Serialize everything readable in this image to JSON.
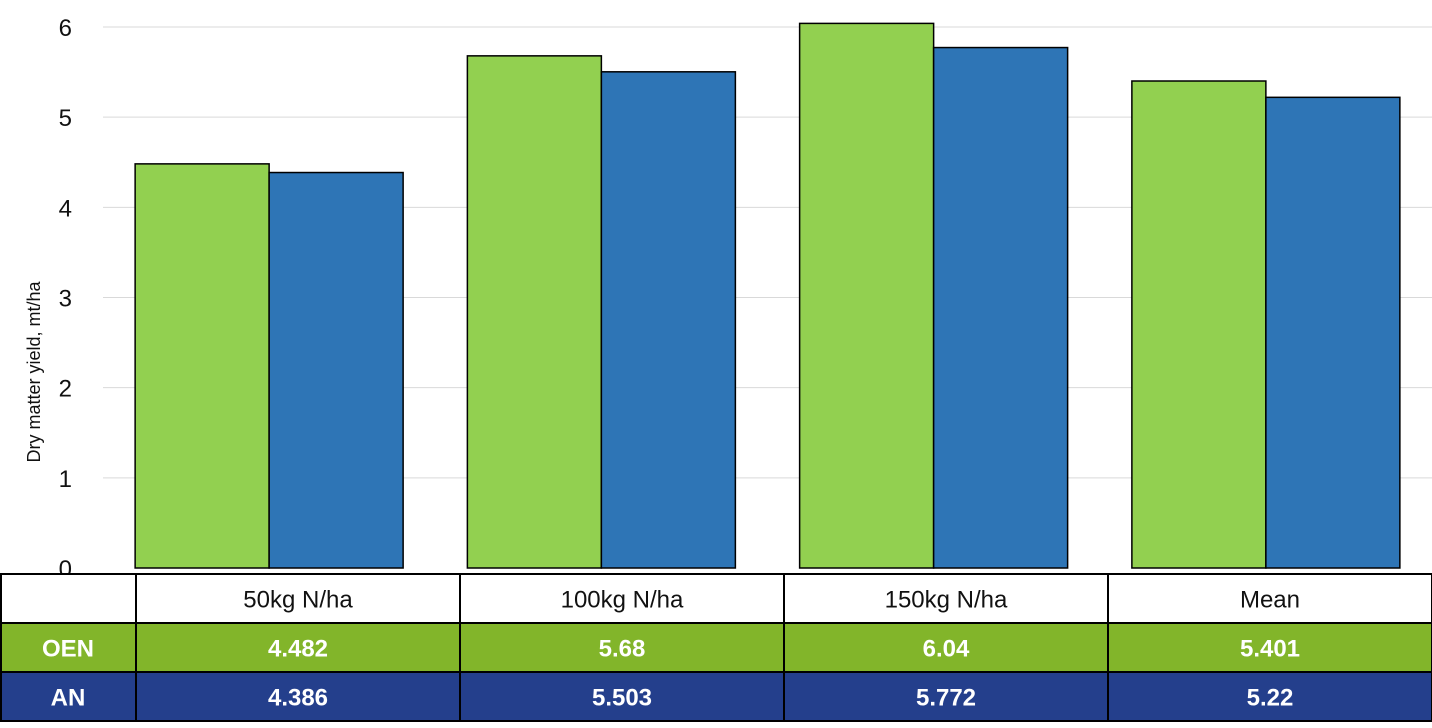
{
  "chart_data": {
    "type": "bar",
    "categories": [
      "50kg N/ha",
      "100kg N/ha",
      "150kg N/ha",
      "Mean"
    ],
    "series": [
      {
        "name": "OEN",
        "values": [
          4.482,
          5.68,
          6.04,
          5.401
        ],
        "color": "#92d050",
        "row_color": "#82b52a"
      },
      {
        "name": "AN",
        "values": [
          4.386,
          5.503,
          5.772,
          5.22
        ],
        "color": "#2e75b6",
        "row_color": "#243f8c"
      }
    ],
    "value_labels": [
      [
        "4.482",
        "5.68",
        "6.04",
        "5.401"
      ],
      [
        "4.386",
        "5.503",
        "5.772",
        "5.22"
      ]
    ],
    "ylabel": "Dry matter yield, mt/ha",
    "ylim": [
      0,
      6
    ],
    "yticks": [
      "0",
      "1",
      "2",
      "3",
      "4",
      "5",
      "6"
    ],
    "grid": true,
    "legend": "data table below chart"
  }
}
